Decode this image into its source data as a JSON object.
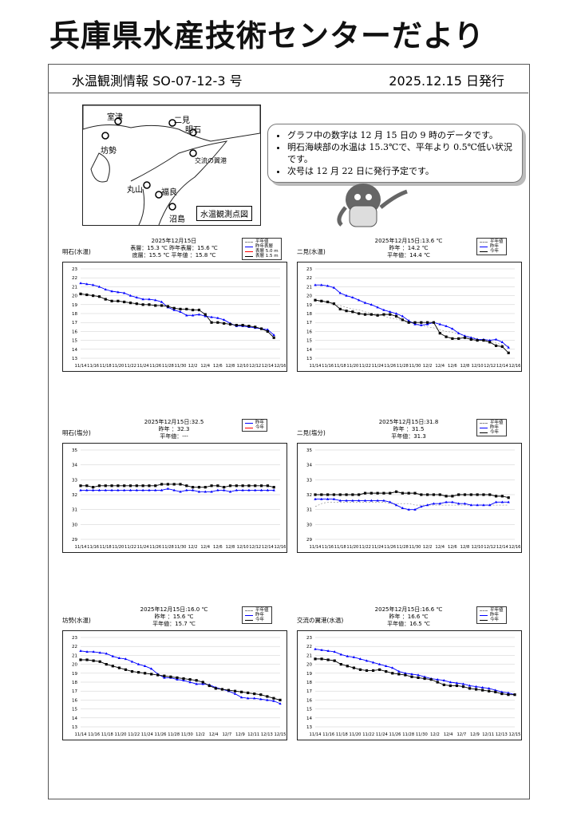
{
  "title": "兵庫県水産技術センターだより",
  "header": {
    "issue": "水温観測情報 SO-07-12-3 号",
    "date": "2025.12.15 日発行"
  },
  "map": {
    "label": "水温観測点図",
    "places": [
      "室津",
      "二見",
      "明石",
      "坊勢",
      "交流の翼港",
      "丸山",
      "福良",
      "沼島"
    ]
  },
  "notes": [
    "グラフ中の数字は 12 月 15 日の 9 時のデータです。",
    "明石海峡部の水温は 15.3℃で、平年より 0.5℃低い状況です。",
    "次号は 12 月 22 日に発行予定です。"
  ],
  "colors": {
    "this_year": "#000000",
    "last_year": "#0000ff",
    "normal": "#888888",
    "deep": "#ff0000"
  },
  "chart_data": [
    {
      "type": "line",
      "name": "明石(水温)",
      "info": [
        "2025年12月15日",
        "表層：15.3 ℃  昨年表層：15.6 ℃",
        "底層：15.5 ℃   平年値 ：15.8 ℃"
      ],
      "legend": [
        "平年値",
        "昨年表層",
        "表層 5.0 m",
        "表層 1.5 m"
      ],
      "ylim": [
        13,
        23
      ],
      "xticks": [
        "11/14",
        "11/16",
        "11/18",
        "11/20",
        "11/22",
        "11/24",
        "11/26",
        "11/28",
        "11/30",
        "12/2",
        "12/4",
        "12/6",
        "12/8",
        "12/10",
        "12/12",
        "12/14",
        "12/16"
      ],
      "series": [
        {
          "name": "昨年",
          "color": "#0000ff",
          "values": [
            21.4,
            21.3,
            21.2,
            21.0,
            20.7,
            20.5,
            20.4,
            20.3,
            20.0,
            19.8,
            19.6,
            19.6,
            19.5,
            19.3,
            18.7,
            18.4,
            18.2,
            17.8,
            17.8,
            17.9,
            17.7,
            17.6,
            17.5,
            17.3,
            16.9,
            16.6,
            16.6,
            16.5,
            16.4,
            16.3,
            16.2,
            15.6
          ]
        },
        {
          "name": "今年",
          "color": "#000000",
          "values": [
            20.2,
            20.1,
            20.0,
            19.9,
            19.6,
            19.4,
            19.4,
            19.3,
            19.2,
            19.1,
            19.0,
            19.0,
            18.9,
            18.9,
            18.8,
            18.6,
            18.5,
            18.5,
            18.4,
            18.4,
            17.9,
            17.0,
            17.0,
            16.9,
            16.8,
            16.7,
            16.7,
            16.6,
            16.5,
            16.3,
            16.0,
            15.3
          ]
        }
      ]
    },
    {
      "type": "line",
      "name": "二見(水温)",
      "info": [
        "2025年12月15日:13.6 ℃",
        "昨年 ：14.2 ℃",
        "平年値：14.4 ℃"
      ],
      "legend": [
        "平年値",
        "昨年",
        "今年"
      ],
      "ylim": [
        13,
        23
      ],
      "xticks": [
        "11/14",
        "11/16",
        "11/18",
        "11/20",
        "11/22",
        "11/24",
        "11/26",
        "11/28",
        "11/30",
        "12/2",
        "12/4",
        "12/6",
        "12/8",
        "12/10",
        "12/12",
        "12/14",
        "12/16"
      ],
      "series": [
        {
          "name": "平年値",
          "color": "#888888",
          "dash": true,
          "values": [
            19.5,
            19.3,
            19.2,
            19.0,
            18.9,
            18.7,
            18.5,
            18.4,
            18.2,
            18.0,
            17.9,
            17.7,
            17.5,
            17.4,
            17.2,
            17.0,
            16.9,
            16.7,
            16.5,
            16.4,
            16.2,
            16.0,
            15.9,
            15.7,
            15.5,
            15.4,
            15.2,
            15.0,
            14.9,
            14.7,
            14.5,
            14.4
          ]
        },
        {
          "name": "昨年",
          "color": "#0000ff",
          "values": [
            21.2,
            21.2,
            21.1,
            20.9,
            20.3,
            20.0,
            19.8,
            19.5,
            19.2,
            19.0,
            18.7,
            18.4,
            18.2,
            18.0,
            17.7,
            17.2,
            16.8,
            16.7,
            16.8,
            17.0,
            16.8,
            16.6,
            16.3,
            15.8,
            15.5,
            15.3,
            15.1,
            15.1,
            15.0,
            15.1,
            14.8,
            14.2
          ]
        },
        {
          "name": "今年",
          "color": "#000000",
          "values": [
            19.5,
            19.4,
            19.3,
            19.1,
            18.5,
            18.3,
            18.2,
            18.0,
            17.9,
            17.9,
            17.8,
            17.9,
            17.9,
            17.7,
            17.3,
            17.0,
            17.0,
            17.0,
            17.0,
            17.0,
            15.8,
            15.4,
            15.2,
            15.2,
            15.3,
            15.1,
            15.0,
            15.0,
            14.8,
            14.4,
            14.3,
            13.6
          ]
        }
      ]
    },
    {
      "type": "line",
      "name": "明石(塩分)",
      "info": [
        "2025年12月15日:32.5",
        "昨年 ：32.3",
        "平年値：---"
      ],
      "legend": [
        "昨年",
        "今年"
      ],
      "ylim": [
        29,
        35
      ],
      "xticks": [
        "11/14",
        "11/16",
        "11/18",
        "11/20",
        "11/22",
        "11/24",
        "11/26",
        "11/28",
        "11/30",
        "12/2",
        "12/4",
        "12/6",
        "12/8",
        "12/10",
        "12/12",
        "12/14",
        "12/16"
      ],
      "series": [
        {
          "name": "昨年",
          "color": "#0000ff",
          "values": [
            32.3,
            32.3,
            32.3,
            32.3,
            32.3,
            32.3,
            32.3,
            32.3,
            32.3,
            32.3,
            32.3,
            32.3,
            32.3,
            32.3,
            32.4,
            32.3,
            32.2,
            32.3,
            32.3,
            32.2,
            32.2,
            32.2,
            32.3,
            32.3,
            32.2,
            32.3,
            32.3,
            32.3,
            32.3,
            32.3,
            32.3,
            32.3
          ]
        },
        {
          "name": "今年",
          "color": "#000000",
          "values": [
            32.6,
            32.6,
            32.5,
            32.6,
            32.6,
            32.6,
            32.6,
            32.6,
            32.6,
            32.6,
            32.6,
            32.6,
            32.6,
            32.7,
            32.7,
            32.7,
            32.7,
            32.6,
            32.5,
            32.5,
            32.5,
            32.6,
            32.6,
            32.5,
            32.6,
            32.6,
            32.6,
            32.6,
            32.6,
            32.6,
            32.6,
            32.5
          ]
        }
      ]
    },
    {
      "type": "line",
      "name": "二見(塩分)",
      "info": [
        "2025年12月15日:31.8",
        "昨年 ：31.5",
        "平年値：31.3"
      ],
      "legend": [
        "平年値",
        "昨年",
        "今年"
      ],
      "ylim": [
        29,
        35
      ],
      "xticks": [
        "11/14",
        "11/16",
        "11/18",
        "11/20",
        "11/22",
        "11/24",
        "11/26",
        "11/28",
        "11/30",
        "12/2",
        "12/4",
        "12/6",
        "12/8",
        "12/10",
        "12/12",
        "12/14",
        "12/16"
      ],
      "series": [
        {
          "name": "平年値",
          "color": "#888888",
          "dash": true,
          "values": [
            31.2,
            31.4,
            31.5,
            31.5,
            31.5,
            31.5,
            31.5,
            31.5,
            31.5,
            31.5,
            31.5,
            31.5,
            31.4,
            31.4,
            31.4,
            31.4,
            31.3,
            31.3,
            31.3,
            31.3,
            31.3,
            31.3,
            31.3,
            31.3,
            31.3,
            31.3,
            31.3,
            31.3,
            31.3,
            31.3,
            31.3,
            31.3
          ]
        },
        {
          "name": "昨年",
          "color": "#0000ff",
          "values": [
            31.7,
            31.7,
            31.7,
            31.7,
            31.6,
            31.6,
            31.6,
            31.6,
            31.6,
            31.6,
            31.6,
            31.6,
            31.5,
            31.3,
            31.1,
            31.0,
            31.0,
            31.2,
            31.3,
            31.4,
            31.4,
            31.5,
            31.5,
            31.4,
            31.4,
            31.3,
            31.3,
            31.3,
            31.3,
            31.5,
            31.5,
            31.5
          ]
        },
        {
          "name": "今年",
          "color": "#000000",
          "values": [
            32.0,
            32.0,
            32.0,
            32.0,
            32.0,
            32.0,
            32.0,
            32.0,
            32.1,
            32.1,
            32.1,
            32.1,
            32.1,
            32.2,
            32.1,
            32.1,
            32.1,
            32.0,
            32.0,
            32.0,
            32.0,
            31.9,
            31.9,
            32.0,
            32.0,
            32.0,
            32.0,
            32.0,
            32.0,
            31.9,
            31.9,
            31.8
          ]
        }
      ]
    },
    {
      "type": "line",
      "name": "坊勢(水温)",
      "info": [
        "2025年12月15日:16.0 ℃",
        "昨年 ：15.6 ℃",
        "平年値：15.7 ℃"
      ],
      "legend": [
        "平年値",
        "昨年",
        "今年"
      ],
      "ylim": [
        13,
        23
      ],
      "xticks": [
        "11/14",
        "11/16",
        "11/18",
        "11/20",
        "11/22",
        "11/24",
        "11/26",
        "11/28",
        "11/30",
        "12/2",
        "12/4",
        "12/7",
        "12/9",
        "12/11",
        "12/13",
        "12/15"
      ],
      "series": [
        {
          "name": "昨年",
          "color": "#0000ff",
          "values": [
            21.5,
            21.4,
            21.4,
            21.3,
            21.2,
            20.9,
            20.7,
            20.6,
            20.3,
            20.0,
            19.8,
            19.5,
            18.9,
            18.5,
            18.5,
            18.3,
            18.2,
            18.0,
            17.8,
            17.8,
            17.7,
            17.4,
            17.2,
            17.0,
            16.7,
            16.3,
            16.2,
            16.2,
            16.1,
            16.0,
            15.9,
            15.6
          ]
        },
        {
          "name": "今年",
          "color": "#000000",
          "values": [
            20.5,
            20.5,
            20.4,
            20.3,
            20.0,
            19.8,
            19.6,
            19.4,
            19.2,
            19.1,
            19.0,
            18.9,
            18.8,
            18.7,
            18.6,
            18.5,
            18.4,
            18.3,
            18.2,
            18.0,
            17.6,
            17.3,
            17.2,
            17.1,
            17.0,
            16.9,
            16.8,
            16.7,
            16.6,
            16.4,
            16.2,
            16.0
          ]
        }
      ]
    },
    {
      "type": "line",
      "name": "交流の翼港(水温)",
      "info": [
        "2025年12月15日:16.6 ℃",
        "昨年 ：16.6 ℃",
        "平年値：16.5 ℃"
      ],
      "legend": [
        "平年値",
        "昨年",
        "今年"
      ],
      "ylim": [
        13,
        23
      ],
      "xticks": [
        "11/14",
        "11/16",
        "11/18",
        "11/20",
        "11/22",
        "11/24",
        "11/26",
        "11/28",
        "11/30",
        "12/2",
        "12/4",
        "12/7",
        "12/9",
        "12/11",
        "12/13",
        "12/15"
      ],
      "series": [
        {
          "name": "昨年",
          "color": "#0000ff",
          "values": [
            21.7,
            21.6,
            21.5,
            21.4,
            21.1,
            20.9,
            20.8,
            20.6,
            20.4,
            20.2,
            20.0,
            19.8,
            19.6,
            19.2,
            19.0,
            18.9,
            18.8,
            18.6,
            18.4,
            18.3,
            18.2,
            18.0,
            17.9,
            17.8,
            17.6,
            17.5,
            17.4,
            17.3,
            17.1,
            16.9,
            16.8,
            16.6
          ]
        },
        {
          "name": "今年",
          "color": "#000000",
          "values": [
            20.6,
            20.6,
            20.5,
            20.4,
            20.0,
            19.8,
            19.6,
            19.4,
            19.3,
            19.3,
            19.4,
            19.2,
            19.0,
            18.9,
            18.8,
            18.6,
            18.5,
            18.4,
            18.3,
            18.0,
            17.7,
            17.6,
            17.6,
            17.5,
            17.3,
            17.2,
            17.1,
            17.0,
            16.9,
            16.7,
            16.6,
            16.6
          ]
        }
      ]
    }
  ]
}
